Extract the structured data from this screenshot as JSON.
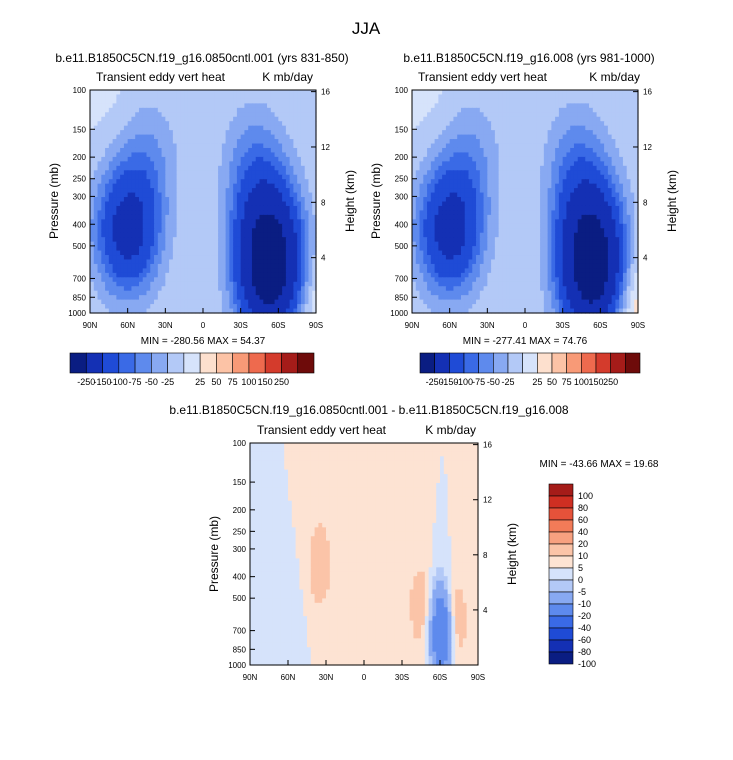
{
  "page_title": "JJA",
  "palette_main": [
    "#0a1d82",
    "#1430b4",
    "#1f4bd6",
    "#3a6ae6",
    "#5e8aed",
    "#88a9f2",
    "#b3c9f7",
    "#d6e3fb",
    "#fde0ce",
    "#fcc3a6",
    "#f89a77",
    "#ee6a4e",
    "#d43b2c",
    "#a51c19",
    "#6e0b0a"
  ],
  "palette_diff": [
    "#0a1d82",
    "#1430b4",
    "#1f4bd6",
    "#3a6ae6",
    "#5e8aed",
    "#88a9f2",
    "#b3c9f7",
    "#d6e3fb",
    "#fde3d3",
    "#fbc4a8",
    "#f8a180",
    "#f27b58",
    "#e6523a",
    "#cf2f22",
    "#a51c19"
  ],
  "chart_data": [
    {
      "type": "heatmap",
      "title": "b.e11.B1850C5CN.f19_g16.0850cntl.001 (yrs 831-850)",
      "left_label": "Transient eddy vert heat",
      "right_label": "K mb/day",
      "ylabel": "Pressure (mb)",
      "ylabel_right": "Height (km)",
      "x_ticks": [
        "90N",
        "60N",
        "30N",
        "0",
        "30S",
        "60S",
        "90S"
      ],
      "y_ticks": [
        "100",
        "150",
        "200",
        "250",
        "300",
        "400",
        "500",
        "700",
        "850",
        "1000"
      ],
      "y_right_ticks": [
        "16",
        "12",
        "8",
        "4"
      ],
      "stats": "MIN = -280.56  MAX = 54.37",
      "colorbar_labels": [
        "-250",
        "-150",
        "-100",
        "-75",
        "-50",
        "-25",
        "25",
        "50",
        "75",
        "100",
        "150",
        "250"
      ],
      "scale": "main",
      "features": [
        {
          "lat": 60,
          "p": 430,
          "value": -180
        },
        {
          "lat": 45,
          "p": 200,
          "value": -50
        },
        {
          "lat": -55,
          "p": 700,
          "value": -280
        },
        {
          "lat": -50,
          "p": 400,
          "value": -150
        },
        {
          "lat": -40,
          "p": 200,
          "value": -50
        },
        {
          "lat": -85,
          "p": 900,
          "value": 54
        },
        {
          "lat": 70,
          "p": 120,
          "value": 10
        }
      ]
    },
    {
      "type": "heatmap",
      "title": "b.e11.B1850C5CN.f19_g16.008 (yrs 981-1000)",
      "left_label": "Transient eddy vert heat",
      "right_label": "K mb/day",
      "ylabel": "Pressure (mb)",
      "ylabel_right": "Height (km)",
      "x_ticks": [
        "90N",
        "60N",
        "30N",
        "0",
        "30S",
        "60S",
        "90S"
      ],
      "y_ticks": [
        "100",
        "150",
        "200",
        "250",
        "300",
        "400",
        "500",
        "700",
        "850",
        "1000"
      ],
      "y_right_ticks": [
        "16",
        "12",
        "8",
        "4"
      ],
      "stats": "MIN = -277.41  MAX = 74.76",
      "colorbar_labels": [
        "-250",
        "-150",
        "-100",
        "-75",
        "-50",
        "-25",
        "25",
        "50",
        "75",
        "100",
        "150",
        "250"
      ],
      "scale": "main",
      "features": [
        {
          "lat": 60,
          "p": 430,
          "value": -180
        },
        {
          "lat": 45,
          "p": 200,
          "value": -50
        },
        {
          "lat": -55,
          "p": 700,
          "value": -277
        },
        {
          "lat": -50,
          "p": 400,
          "value": -150
        },
        {
          "lat": -40,
          "p": 200,
          "value": -50
        },
        {
          "lat": -85,
          "p": 900,
          "value": 74
        },
        {
          "lat": 70,
          "p": 120,
          "value": 10
        }
      ]
    },
    {
      "type": "heatmap",
      "title": "b.e11.B1850C5CN.f19_g16.0850cntl.001 - b.e11.B1850C5CN.f19_g16.008",
      "left_label": "Transient eddy vert heat",
      "right_label": "K mb/day",
      "ylabel": "Pressure (mb)",
      "ylabel_right": "Height (km)",
      "x_ticks": [
        "90N",
        "60N",
        "30N",
        "0",
        "30S",
        "60S",
        "90S"
      ],
      "y_ticks": [
        "100",
        "150",
        "200",
        "250",
        "300",
        "400",
        "500",
        "700",
        "850",
        "1000"
      ],
      "y_right_ticks": [
        "16",
        "12",
        "8",
        "4"
      ],
      "stats": "MIN = -43.66  MAX = 19.68",
      "colorbar_labels": [
        "100",
        "80",
        "60",
        "40",
        "20",
        "10",
        "5",
        "0",
        "-5",
        "-10",
        "-20",
        "-40",
        "-60",
        "-80",
        "-100"
      ],
      "scale": "diff",
      "features": [
        {
          "lat": -62,
          "p": 700,
          "value": -43
        },
        {
          "lat": -70,
          "p": 650,
          "value": 19
        },
        {
          "lat": -45,
          "p": 550,
          "value": 10
        },
        {
          "lat": 35,
          "p": 350,
          "value": 10
        },
        {
          "lat": 60,
          "p": 650,
          "value": -5
        },
        {
          "lat": 0,
          "p": 300,
          "value": 3
        }
      ]
    }
  ]
}
